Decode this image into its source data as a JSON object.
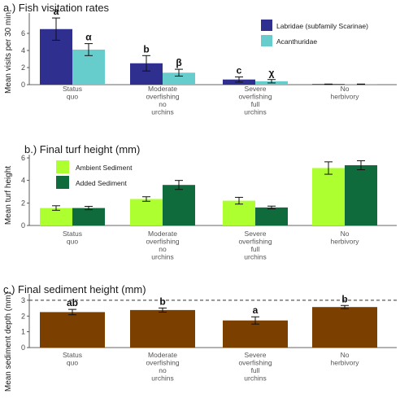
{
  "chart_data": [
    {
      "type": "bar",
      "title": "a.) Fish visitation rates",
      "ylabel": "Mean visits per 30 min",
      "xlabel": "",
      "ylim": [
        0,
        8
      ],
      "yticks": [
        0,
        2,
        4,
        6
      ],
      "categories": [
        [
          "Status",
          "quo"
        ],
        [
          "Moderate",
          "overfishing",
          "no",
          "urchins"
        ],
        [
          "Severe",
          "overfishing",
          "full",
          "urchins"
        ],
        [
          "No",
          "herbivory"
        ]
      ],
      "series": [
        {
          "name": "Labridae (subfamily Scarinae)",
          "color": "#2f2f8f",
          "values": [
            6.5,
            2.5,
            0.6,
            0.05
          ],
          "errors": [
            1.3,
            0.9,
            0.3,
            0.02
          ],
          "sig": [
            "a",
            "b",
            "c",
            ""
          ]
        },
        {
          "name": "Acanthuridae",
          "color": "#66cccc",
          "values": [
            4.1,
            1.4,
            0.4,
            0.05
          ],
          "errors": [
            0.7,
            0.4,
            0.2,
            0.02
          ],
          "sig": [
            "α",
            "β",
            "χ",
            ""
          ]
        }
      ],
      "legend": "top-right"
    },
    {
      "type": "bar",
      "title": "b.) Final turf height (mm)",
      "ylabel": "Mean turf height",
      "xlabel": "",
      "ylim": [
        0,
        6
      ],
      "yticks": [
        0,
        2,
        4,
        6
      ],
      "categories": [
        [
          "Status",
          "quo"
        ],
        [
          "Moderate",
          "overfishing",
          "no",
          "urchins"
        ],
        [
          "Severe",
          "overfishing",
          "full",
          "urchins"
        ],
        [
          "No",
          "herbivory"
        ]
      ],
      "series": [
        {
          "name": "Ambient Sediment",
          "color": "#adff2f",
          "values": [
            1.55,
            2.35,
            2.2,
            5.1
          ],
          "errors": [
            0.2,
            0.2,
            0.3,
            0.55
          ]
        },
        {
          "name": "Added Sediment",
          "color": "#0f6b3c",
          "values": [
            1.55,
            3.6,
            1.6,
            5.35
          ],
          "errors": [
            0.15,
            0.4,
            0.12,
            0.4
          ]
        }
      ],
      "legend": "top-left"
    },
    {
      "type": "bar",
      "title": "c.) Final sediment height (mm)",
      "ylabel": "Mean sediment depth (mm)",
      "xlabel": "",
      "ylim": [
        0,
        3.2
      ],
      "yticks": [
        0,
        1,
        2,
        3
      ],
      "reference_line": 3,
      "categories": [
        [
          "Status",
          "quo"
        ],
        [
          "Moderate",
          "overfishing",
          "no",
          "urchins"
        ],
        [
          "Severe",
          "overfishing",
          "full",
          "urchins"
        ],
        [
          "No",
          "herbivory"
        ]
      ],
      "series": [
        {
          "color": "#7b3f00",
          "values": [
            2.25,
            2.38,
            1.72,
            2.57
          ],
          "errors": [
            0.17,
            0.13,
            0.23,
            0.1
          ],
          "sig": [
            "ab",
            "b",
            "a",
            "b"
          ]
        }
      ]
    }
  ]
}
